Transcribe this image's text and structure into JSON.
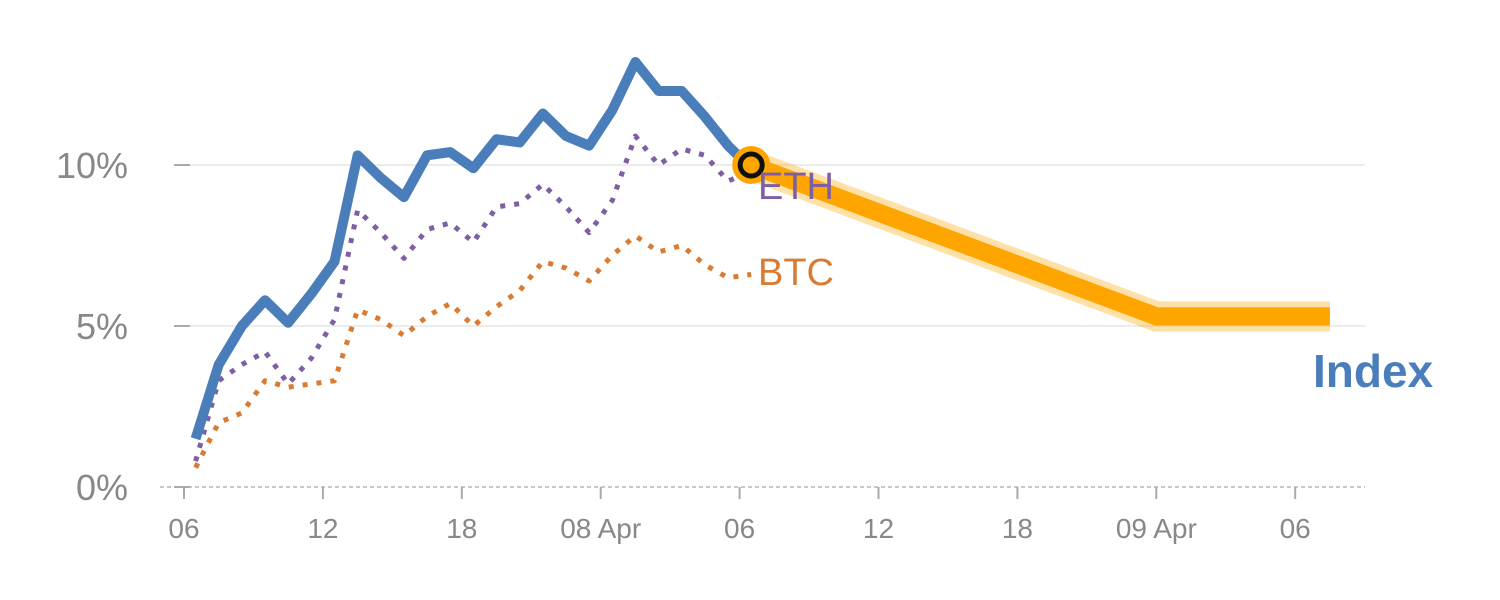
{
  "chart_data": {
    "type": "line",
    "xlabel": "",
    "ylabel": "",
    "ylim": [
      0,
      13.5
    ],
    "y_ticks": [
      {
        "value": 0,
        "label": "0%"
      },
      {
        "value": 5,
        "label": "5%"
      },
      {
        "value": 10,
        "label": "10%"
      }
    ],
    "x_ticks": [
      {
        "value": 0,
        "label": "06"
      },
      {
        "value": 6,
        "label": "12"
      },
      {
        "value": 12,
        "label": "18"
      },
      {
        "value": 18,
        "label": "08 Apr"
      },
      {
        "value": 24,
        "label": "06"
      },
      {
        "value": 30,
        "label": "12"
      },
      {
        "value": 36,
        "label": "18"
      },
      {
        "value": 42,
        "label": "09 Apr"
      },
      {
        "value": 48,
        "label": "06"
      }
    ],
    "grid": true,
    "series": [
      {
        "name": "Index",
        "color": "#4a7ebb",
        "style": "solid",
        "x": [
          0.5,
          1.5,
          2.5,
          3.5,
          4.5,
          5.5,
          6.5,
          7.5,
          8.5,
          9.5,
          10.5,
          11.5,
          12.5,
          13.5,
          14.5,
          15.5,
          16.5,
          17.5,
          18.5,
          19.5,
          20.5,
          21.5,
          22.5,
          23.5,
          24.5
        ],
        "values": [
          1.5,
          3.8,
          5.0,
          5.8,
          5.1,
          6.0,
          7.0,
          10.3,
          9.6,
          9.0,
          10.3,
          10.4,
          9.9,
          10.8,
          10.7,
          11.6,
          10.9,
          10.6,
          11.7,
          13.2,
          12.3,
          12.3,
          11.5,
          10.6,
          9.9
        ]
      },
      {
        "name": "ETH",
        "color": "#7d5fa3",
        "style": "dotted",
        "x": [
          0.5,
          1.5,
          2.5,
          3.5,
          4.5,
          5.5,
          6.5,
          7.5,
          8.5,
          9.5,
          10.5,
          11.5,
          12.5,
          13.5,
          14.5,
          15.5,
          16.5,
          17.5,
          18.5,
          19.5,
          20.5,
          21.5,
          22.5,
          23.5,
          24.5
        ],
        "values": [
          0.8,
          3.3,
          3.8,
          4.2,
          3.2,
          4.0,
          5.2,
          8.6,
          7.9,
          7.1,
          8.0,
          8.2,
          7.6,
          8.7,
          8.8,
          9.4,
          8.7,
          7.9,
          8.9,
          10.9,
          10.0,
          10.5,
          10.3,
          9.5,
          9.8
        ]
      },
      {
        "name": "BTC",
        "color": "#d97b32",
        "style": "dotted",
        "x": [
          0.5,
          1.5,
          2.5,
          3.5,
          4.5,
          5.5,
          6.5,
          7.5,
          8.5,
          9.5,
          10.5,
          11.5,
          12.5,
          13.5,
          14.5,
          15.5,
          16.5,
          17.5,
          18.5,
          19.5,
          20.5,
          21.5,
          22.5,
          23.5,
          24.5
        ],
        "values": [
          0.6,
          2.0,
          2.3,
          3.3,
          3.1,
          3.2,
          3.3,
          5.5,
          5.2,
          4.7,
          5.3,
          5.7,
          5.0,
          5.6,
          6.1,
          7.0,
          6.8,
          6.4,
          7.2,
          7.8,
          7.3,
          7.5,
          6.9,
          6.5,
          6.6
        ]
      },
      {
        "name": "forecast",
        "color": "#ffa500",
        "style": "band",
        "x": [
          24.5,
          42,
          49.5
        ],
        "values": [
          10.0,
          5.3,
          5.3
        ]
      }
    ],
    "marker": {
      "x": 24.5,
      "value": 10.0
    },
    "labels": [
      {
        "text": "ETH",
        "series": "ETH",
        "color": "#7d5fa3"
      },
      {
        "text": "BTC",
        "series": "BTC",
        "color": "#d97b32"
      },
      {
        "text": "Index",
        "series": "Index",
        "color": "#4a7ebb"
      }
    ]
  }
}
